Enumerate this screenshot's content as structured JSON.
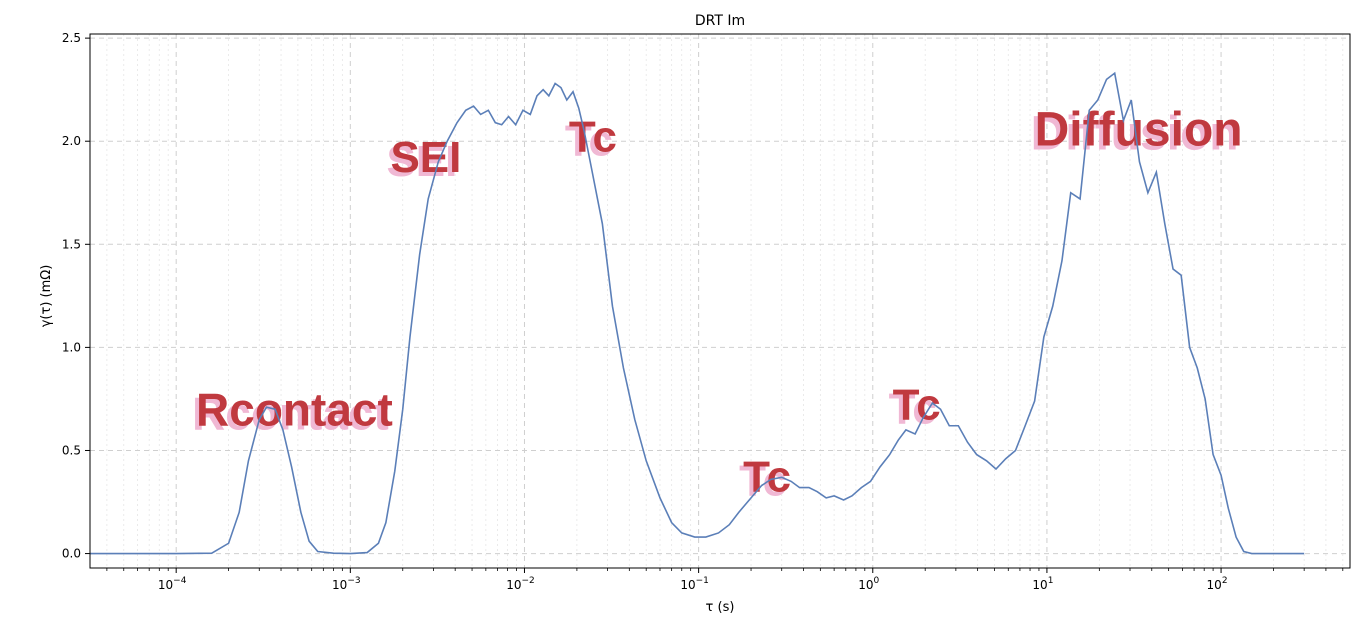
{
  "chart_data": {
    "type": "line",
    "title": "DRT Im",
    "xlabel": "τ (s)",
    "ylabel": "γ(τ) (mΩ)",
    "x_scale": "log",
    "xlim": [
      3.2e-05,
      550
    ],
    "ylim": [
      -0.07,
      2.52
    ],
    "x_ticks": [
      {
        "value": 0.0001,
        "base": "10",
        "exp": "−4"
      },
      {
        "value": 0.001,
        "base": "10",
        "exp": "−3"
      },
      {
        "value": 0.01,
        "base": "10",
        "exp": "−2"
      },
      {
        "value": 0.1,
        "base": "10",
        "exp": "−1"
      },
      {
        "value": 1,
        "base": "10",
        "exp": "0"
      },
      {
        "value": 10,
        "base": "10",
        "exp": "1"
      },
      {
        "value": 100,
        "base": "10",
        "exp": "2"
      }
    ],
    "y_ticks": [
      "0.0",
      "0.5",
      "1.0",
      "1.5",
      "2.0",
      "2.5"
    ],
    "grid": true,
    "line_color": "#5b7fb8",
    "series": [
      {
        "points": [
          [
            3.2e-05,
            0.0
          ],
          [
            0.0001,
            0.0
          ],
          [
            0.00016,
            0.002
          ],
          [
            0.0002,
            0.05
          ],
          [
            0.00023,
            0.2
          ],
          [
            0.00026,
            0.45
          ],
          [
            0.0003,
            0.65
          ],
          [
            0.00033,
            0.71
          ],
          [
            0.00037,
            0.7
          ],
          [
            0.00041,
            0.6
          ],
          [
            0.00046,
            0.42
          ],
          [
            0.00052,
            0.2
          ],
          [
            0.00058,
            0.06
          ],
          [
            0.00065,
            0.01
          ],
          [
            0.0008,
            0.002
          ],
          [
            0.001,
            0.0
          ],
          [
            0.00125,
            0.005
          ],
          [
            0.00145,
            0.05
          ],
          [
            0.0016,
            0.15
          ],
          [
            0.0018,
            0.4
          ],
          [
            0.002,
            0.7
          ],
          [
            0.0022,
            1.05
          ],
          [
            0.0025,
            1.45
          ],
          [
            0.0028,
            1.72
          ],
          [
            0.0032,
            1.9
          ],
          [
            0.0036,
            2.0
          ],
          [
            0.0041,
            2.09
          ],
          [
            0.0046,
            2.15
          ],
          [
            0.0051,
            2.17
          ],
          [
            0.0056,
            2.13
          ],
          [
            0.0062,
            2.15
          ],
          [
            0.0068,
            2.09
          ],
          [
            0.0074,
            2.08
          ],
          [
            0.0081,
            2.12
          ],
          [
            0.0089,
            2.08
          ],
          [
            0.0098,
            2.15
          ],
          [
            0.0108,
            2.13
          ],
          [
            0.0118,
            2.22
          ],
          [
            0.0128,
            2.25
          ],
          [
            0.0138,
            2.22
          ],
          [
            0.015,
            2.28
          ],
          [
            0.0162,
            2.26
          ],
          [
            0.0175,
            2.2
          ],
          [
            0.019,
            2.24
          ],
          [
            0.0205,
            2.16
          ],
          [
            0.022,
            2.05
          ],
          [
            0.0245,
            1.85
          ],
          [
            0.028,
            1.6
          ],
          [
            0.032,
            1.2
          ],
          [
            0.037,
            0.9
          ],
          [
            0.043,
            0.65
          ],
          [
            0.05,
            0.45
          ],
          [
            0.06,
            0.27
          ],
          [
            0.07,
            0.15
          ],
          [
            0.08,
            0.1
          ],
          [
            0.095,
            0.08
          ],
          [
            0.11,
            0.08
          ],
          [
            0.13,
            0.1
          ],
          [
            0.15,
            0.14
          ],
          [
            0.17,
            0.2
          ],
          [
            0.2,
            0.27
          ],
          [
            0.23,
            0.33
          ],
          [
            0.26,
            0.36
          ],
          [
            0.3,
            0.37
          ],
          [
            0.34,
            0.35
          ],
          [
            0.38,
            0.32
          ],
          [
            0.43,
            0.32
          ],
          [
            0.48,
            0.3
          ],
          [
            0.54,
            0.27
          ],
          [
            0.6,
            0.28
          ],
          [
            0.68,
            0.26
          ],
          [
            0.76,
            0.28
          ],
          [
            0.86,
            0.32
          ],
          [
            0.97,
            0.35
          ],
          [
            1.1,
            0.42
          ],
          [
            1.25,
            0.48
          ],
          [
            1.4,
            0.55
          ],
          [
            1.55,
            0.6
          ],
          [
            1.75,
            0.58
          ],
          [
            1.95,
            0.66
          ],
          [
            2.2,
            0.73
          ],
          [
            2.45,
            0.7
          ],
          [
            2.75,
            0.62
          ],
          [
            3.1,
            0.62
          ],
          [
            3.5,
            0.54
          ],
          [
            3.95,
            0.48
          ],
          [
            4.5,
            0.45
          ],
          [
            5.1,
            0.41
          ],
          [
            5.8,
            0.46
          ],
          [
            6.6,
            0.5
          ],
          [
            7.5,
            0.62
          ],
          [
            8.5,
            0.74
          ],
          [
            9.6,
            1.05
          ],
          [
            10.8,
            1.2
          ],
          [
            12.2,
            1.42
          ],
          [
            13.7,
            1.75
          ],
          [
            15.5,
            1.72
          ],
          [
            17.5,
            2.15
          ],
          [
            19.6,
            2.2
          ],
          [
            22.0,
            2.3
          ],
          [
            24.5,
            2.33
          ],
          [
            27.5,
            2.1
          ],
          [
            30.5,
            2.2
          ],
          [
            34.0,
            1.9
          ],
          [
            38.0,
            1.75
          ],
          [
            42.5,
            1.85
          ],
          [
            47.5,
            1.6
          ],
          [
            53.0,
            1.38
          ],
          [
            59.0,
            1.35
          ],
          [
            66.0,
            1.0
          ],
          [
            73.0,
            0.9
          ],
          [
            81.0,
            0.75
          ],
          [
            90.0,
            0.48
          ],
          [
            100.0,
            0.38
          ],
          [
            110.0,
            0.22
          ],
          [
            122.0,
            0.08
          ],
          [
            135.0,
            0.01
          ],
          [
            150.0,
            0.0
          ],
          [
            200.0,
            0.0
          ],
          [
            300.0,
            0.0
          ]
        ]
      }
    ],
    "annotations": [
      {
        "text": "Rcontact",
        "x": 0.00013,
        "y": 0.62,
        "size": 46
      },
      {
        "text": "SEI",
        "x": 0.0017,
        "y": 1.85,
        "size": 44
      },
      {
        "text": "Tc",
        "x": 0.018,
        "y": 1.95,
        "size": 44
      },
      {
        "text": "Tc",
        "x": 0.18,
        "y": 0.3,
        "size": 44
      },
      {
        "text": "Tc",
        "x": 1.3,
        "y": 0.65,
        "size": 44
      },
      {
        "text": "Diffusion",
        "x": 8.5,
        "y": 1.98,
        "size": 48
      }
    ],
    "annotation_color": "#c0393f",
    "annotation_shadow_color": "#f0b8d4"
  }
}
